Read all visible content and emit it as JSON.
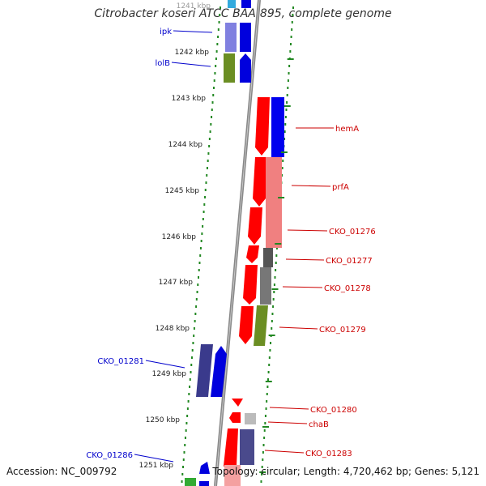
{
  "title": "Citrobacter koseri ATCC BAA-895, complete genome",
  "footer": {
    "accession": "Accession: NC_009792",
    "summary": "Topology: circular; Length: 4,720,462 bp; Genes: 5,121"
  },
  "colors": {
    "forward_label": "#0000cc",
    "reverse_label": "#cc0000",
    "backbone": "#888888",
    "tick": "#228822"
  },
  "kbp_ticks": [
    "1241 kbp",
    "1242 kbp",
    "1243 kbp",
    "1244 kbp",
    "1245 kbp",
    "1246 kbp",
    "1247 kbp",
    "1248 kbp",
    "1249 kbp",
    "1250 kbp",
    "1251 kbp"
  ],
  "genes": {
    "forward": [
      "ipk",
      "lolB",
      "CKO_01281",
      "CKO_01286"
    ],
    "reverse": [
      "hemA",
      "prfA",
      "CKO_01276",
      "CKO_01277",
      "CKO_01278",
      "CKO_01279",
      "CKO_01280",
      "chaB",
      "CKO_01283"
    ]
  }
}
